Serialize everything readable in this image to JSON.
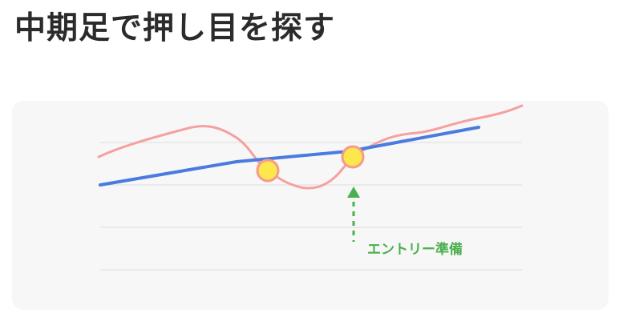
{
  "page": {
    "title": "中期足で押し目を探す"
  },
  "diagram": {
    "annotation_label": "エントリー準備",
    "colors": {
      "card_background": "#f7f7f7",
      "grid_line": "#e3e3e3",
      "price_line": "#f6a0a0",
      "moving_average_line": "#4a7bdf",
      "touch_point_fill": "#fde74c",
      "touch_point_stroke": "#f59b8c",
      "entry_arrow": "#4caf50",
      "entry_label": "#4caf50"
    }
  }
}
